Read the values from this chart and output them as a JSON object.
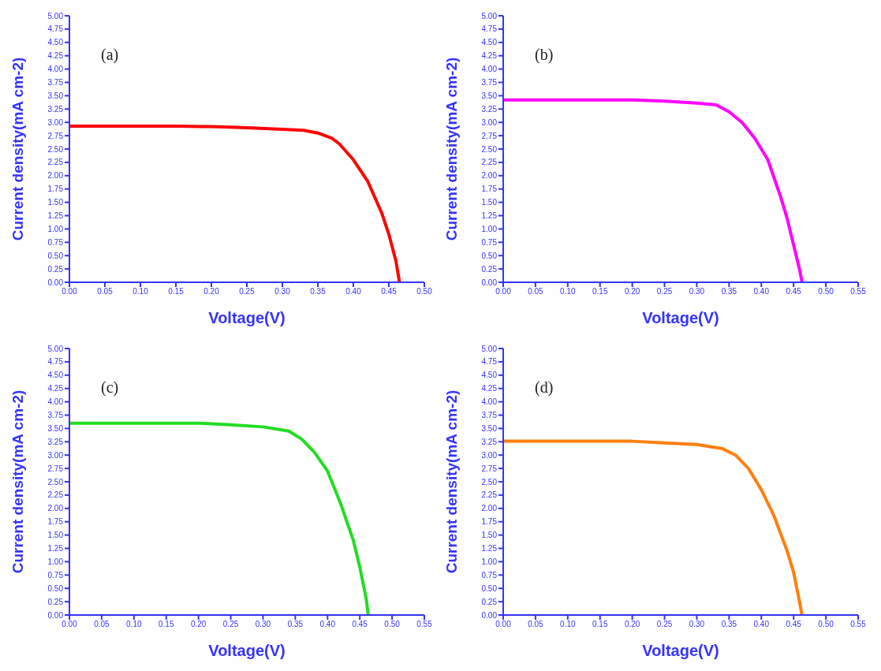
{
  "chart_data": [
    {
      "type": "line",
      "annotations": [
        "(a)"
      ],
      "xlabel": "Voltage(V)",
      "ylabel": "Current density(mA cm-2)",
      "grid": false,
      "legend": false,
      "marker": "none",
      "line_style": "solid",
      "x": [
        0,
        0.05,
        0.1,
        0.15,
        0.2,
        0.25,
        0.3,
        0.33,
        0.35,
        0.37,
        0.38,
        0.4,
        0.42,
        0.44,
        0.45,
        0.46,
        0.465
      ],
      "series": [
        {
          "color": "#ff0000",
          "values": [
            2.93,
            2.93,
            2.93,
            2.93,
            2.92,
            2.9,
            2.87,
            2.85,
            2.8,
            2.7,
            2.6,
            2.3,
            1.9,
            1.3,
            0.9,
            0.4,
            0
          ]
        }
      ],
      "xlim": [
        0,
        0.5
      ],
      "xticks": [
        {
          "value": 0,
          "label": "0.00"
        },
        {
          "value": 0.05,
          "label": "0.05"
        },
        {
          "value": 0.1,
          "label": "0.10"
        },
        {
          "value": 0.15,
          "label": "0.15"
        },
        {
          "value": 0.2,
          "label": "0.20"
        },
        {
          "value": 0.25,
          "label": "0.25"
        },
        {
          "value": 0.3,
          "label": "0.30"
        },
        {
          "value": 0.35,
          "label": "0.35"
        },
        {
          "value": 0.4,
          "label": "0.40"
        },
        {
          "value": 0.45,
          "label": "0.45"
        },
        {
          "value": 0.5,
          "label": "0.50"
        }
      ],
      "ylim": [
        0,
        5
      ],
      "yticks": [
        {
          "value": 0,
          "label": "0.00"
        },
        {
          "value": 0.25,
          "label": "0.25"
        },
        {
          "value": 0.5,
          "label": "0.50"
        },
        {
          "value": 0.75,
          "label": "0.75"
        },
        {
          "value": 1,
          "label": "1.00"
        },
        {
          "value": 1.25,
          "label": "1.25"
        },
        {
          "value": 1.5,
          "label": "1.50"
        },
        {
          "value": 1.75,
          "label": "1.75"
        },
        {
          "value": 2,
          "label": "2.00"
        },
        {
          "value": 2.25,
          "label": "2.25"
        },
        {
          "value": 2.5,
          "label": "2.50"
        },
        {
          "value": 2.75,
          "label": "2.75"
        },
        {
          "value": 3,
          "label": "3.00"
        },
        {
          "value": 3.25,
          "label": "3.25"
        },
        {
          "value": 3.5,
          "label": "3.50"
        },
        {
          "value": 3.75,
          "label": "3.75"
        },
        {
          "value": 4,
          "label": "4.00"
        },
        {
          "value": 4.25,
          "label": "4.25"
        },
        {
          "value": 4.5,
          "label": "4.50"
        },
        {
          "value": 4.75,
          "label": "4.75"
        },
        {
          "value": 5,
          "label": "5.00"
        }
      ]
    },
    {
      "type": "line",
      "annotations": [
        "(b)"
      ],
      "xlabel": "Voltage(V)",
      "ylabel": "Current density(mA cm-2)",
      "grid": false,
      "legend": false,
      "marker": "none",
      "line_style": "solid",
      "x": [
        0,
        0.05,
        0.1,
        0.15,
        0.2,
        0.25,
        0.3,
        0.33,
        0.35,
        0.37,
        0.39,
        0.41,
        0.43,
        0.44,
        0.45,
        0.46,
        0.463
      ],
      "series": [
        {
          "color": "#ff00ff",
          "values": [
            3.42,
            3.42,
            3.42,
            3.42,
            3.42,
            3.4,
            3.36,
            3.33,
            3.2,
            3.0,
            2.7,
            2.3,
            1.6,
            1.2,
            0.7,
            0.2,
            0
          ]
        }
      ],
      "xlim": [
        0,
        0.55
      ],
      "xticks": [
        {
          "value": 0,
          "label": "0.00"
        },
        {
          "value": 0.05,
          "label": "0.05"
        },
        {
          "value": 0.1,
          "label": "0.10"
        },
        {
          "value": 0.15,
          "label": "0.15"
        },
        {
          "value": 0.2,
          "label": "0.20"
        },
        {
          "value": 0.25,
          "label": "0.25"
        },
        {
          "value": 0.3,
          "label": "0.30"
        },
        {
          "value": 0.35,
          "label": "0.35"
        },
        {
          "value": 0.4,
          "label": "0.40"
        },
        {
          "value": 0.45,
          "label": "0.45"
        },
        {
          "value": 0.5,
          "label": "0.50"
        },
        {
          "value": 0.55,
          "label": "0.55"
        }
      ],
      "ylim": [
        0,
        5
      ],
      "yticks": [
        {
          "value": 0,
          "label": "0.00"
        },
        {
          "value": 0.25,
          "label": "0.25"
        },
        {
          "value": 0.5,
          "label": "0.50"
        },
        {
          "value": 0.75,
          "label": "0.75"
        },
        {
          "value": 1,
          "label": "1.00"
        },
        {
          "value": 1.25,
          "label": "1.25"
        },
        {
          "value": 1.5,
          "label": "1.50"
        },
        {
          "value": 1.75,
          "label": "1.75"
        },
        {
          "value": 2,
          "label": "2.00"
        },
        {
          "value": 2.25,
          "label": "2.25"
        },
        {
          "value": 2.5,
          "label": "2.50"
        },
        {
          "value": 2.75,
          "label": "2.75"
        },
        {
          "value": 3,
          "label": "3.00"
        },
        {
          "value": 3.25,
          "label": "3.25"
        },
        {
          "value": 3.5,
          "label": "3.50"
        },
        {
          "value": 3.75,
          "label": "3.75"
        },
        {
          "value": 4,
          "label": "4.00"
        },
        {
          "value": 4.25,
          "label": "4.25"
        },
        {
          "value": 4.5,
          "label": "4.50"
        },
        {
          "value": 4.75,
          "label": "4.75"
        },
        {
          "value": 5,
          "label": "5.00"
        }
      ]
    },
    {
      "type": "line",
      "annotations": [
        "(c)"
      ],
      "xlabel": "Voltage(V)",
      "ylabel": "Current density(mA cm-2)",
      "grid": false,
      "legend": false,
      "marker": "none",
      "line_style": "solid",
      "x": [
        0,
        0.05,
        0.1,
        0.15,
        0.2,
        0.25,
        0.3,
        0.34,
        0.36,
        0.38,
        0.4,
        0.42,
        0.44,
        0.45,
        0.46,
        0.463
      ],
      "series": [
        {
          "color": "#22dd22",
          "values": [
            3.6,
            3.6,
            3.6,
            3.6,
            3.6,
            3.57,
            3.53,
            3.45,
            3.3,
            3.05,
            2.7,
            2.1,
            1.4,
            0.9,
            0.3,
            0
          ]
        }
      ],
      "xlim": [
        0,
        0.55
      ],
      "xticks": [
        {
          "value": 0,
          "label": "0.00"
        },
        {
          "value": 0.05,
          "label": "0.05"
        },
        {
          "value": 0.1,
          "label": "0.10"
        },
        {
          "value": 0.15,
          "label": "0.15"
        },
        {
          "value": 0.2,
          "label": "0.20"
        },
        {
          "value": 0.25,
          "label": "0.25"
        },
        {
          "value": 0.3,
          "label": "0.30"
        },
        {
          "value": 0.35,
          "label": "0.35"
        },
        {
          "value": 0.4,
          "label": "0.40"
        },
        {
          "value": 0.45,
          "label": "0.45"
        },
        {
          "value": 0.5,
          "label": "0.50"
        },
        {
          "value": 0.55,
          "label": "0.55"
        }
      ],
      "ylim": [
        0,
        5
      ],
      "yticks": [
        {
          "value": 0,
          "label": "0.00"
        },
        {
          "value": 0.25,
          "label": "0.25"
        },
        {
          "value": 0.5,
          "label": "0.50"
        },
        {
          "value": 0.75,
          "label": "0.75"
        },
        {
          "value": 1,
          "label": "1.00"
        },
        {
          "value": 1.25,
          "label": "1.25"
        },
        {
          "value": 1.5,
          "label": "1.50"
        },
        {
          "value": 1.75,
          "label": "1.75"
        },
        {
          "value": 2,
          "label": "2.00"
        },
        {
          "value": 2.25,
          "label": "2.25"
        },
        {
          "value": 2.5,
          "label": "2.50"
        },
        {
          "value": 2.75,
          "label": "2.75"
        },
        {
          "value": 3,
          "label": "3.00"
        },
        {
          "value": 3.25,
          "label": "3.25"
        },
        {
          "value": 3.5,
          "label": "3.50"
        },
        {
          "value": 3.75,
          "label": "3.75"
        },
        {
          "value": 4,
          "label": "4.00"
        },
        {
          "value": 4.25,
          "label": "4.25"
        },
        {
          "value": 4.5,
          "label": "4.50"
        },
        {
          "value": 4.75,
          "label": "4.75"
        },
        {
          "value": 5,
          "label": "5.00"
        }
      ]
    },
    {
      "type": "line",
      "annotations": [
        "(d)"
      ],
      "xlabel": "Voltage(V)",
      "ylabel": "Current density(mA cm-2)",
      "grid": false,
      "legend": false,
      "marker": "none",
      "line_style": "solid",
      "x": [
        0,
        0.05,
        0.1,
        0.15,
        0.2,
        0.25,
        0.3,
        0.34,
        0.36,
        0.38,
        0.4,
        0.42,
        0.44,
        0.45,
        0.46,
        0.463
      ],
      "series": [
        {
          "color": "#ff7f0e",
          "values": [
            3.26,
            3.26,
            3.26,
            3.26,
            3.26,
            3.23,
            3.2,
            3.12,
            3.0,
            2.75,
            2.35,
            1.85,
            1.2,
            0.8,
            0.2,
            0
          ]
        }
      ],
      "xlim": [
        0,
        0.55
      ],
      "xticks": [
        {
          "value": 0,
          "label": "0.00"
        },
        {
          "value": 0.05,
          "label": "0.05"
        },
        {
          "value": 0.1,
          "label": "0.10"
        },
        {
          "value": 0.15,
          "label": "0.15"
        },
        {
          "value": 0.2,
          "label": "0.20"
        },
        {
          "value": 0.25,
          "label": "0.25"
        },
        {
          "value": 0.3,
          "label": "0.30"
        },
        {
          "value": 0.35,
          "label": "0.35"
        },
        {
          "value": 0.4,
          "label": "0.40"
        },
        {
          "value": 0.45,
          "label": "0.45"
        },
        {
          "value": 0.5,
          "label": "0.50"
        },
        {
          "value": 0.55,
          "label": "0.55"
        }
      ],
      "ylim": [
        0,
        5
      ],
      "yticks": [
        {
          "value": 0,
          "label": "0.00"
        },
        {
          "value": 0.25,
          "label": "0.25"
        },
        {
          "value": 0.5,
          "label": "0.50"
        },
        {
          "value": 0.75,
          "label": "0.75"
        },
        {
          "value": 1,
          "label": "1.00"
        },
        {
          "value": 1.25,
          "label": "1.25"
        },
        {
          "value": 1.5,
          "label": "1.50"
        },
        {
          "value": 1.75,
          "label": "1.75"
        },
        {
          "value": 2,
          "label": "2.00"
        },
        {
          "value": 2.25,
          "label": "2.25"
        },
        {
          "value": 2.5,
          "label": "2.50"
        },
        {
          "value": 2.75,
          "label": "2.75"
        },
        {
          "value": 3,
          "label": "3.00"
        },
        {
          "value": 3.25,
          "label": "3.25"
        },
        {
          "value": 3.5,
          "label": "3.50"
        },
        {
          "value": 3.75,
          "label": "3.75"
        },
        {
          "value": 4,
          "label": "4.00"
        },
        {
          "value": 4.25,
          "label": "4.25"
        },
        {
          "value": 4.5,
          "label": "4.50"
        },
        {
          "value": 4.75,
          "label": "4.75"
        },
        {
          "value": 5,
          "label": "5.00"
        }
      ]
    }
  ]
}
